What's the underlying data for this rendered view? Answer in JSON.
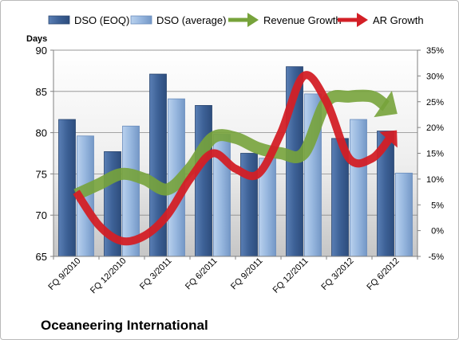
{
  "chart_data": {
    "type": "bar",
    "title": "",
    "company": "Oceaneering International",
    "y_left_label": "Days",
    "y_left_range": [
      65,
      90
    ],
    "y_left_ticks": [
      "65",
      "70",
      "75",
      "80",
      "85",
      "90"
    ],
    "y_right_range": [
      -5,
      35
    ],
    "y_right_ticks": [
      "-5%",
      "0%",
      "5%",
      "10%",
      "15%",
      "20%",
      "25%",
      "30%",
      "35%"
    ],
    "legend_position": "top",
    "grid": true,
    "x_tick_labels": [
      "FQ 9/2010",
      "FQ 12/2010",
      "FQ 3/2011",
      "FQ 6/2011",
      "FQ 9/2011",
      "FQ 12/2011",
      "FQ 3/2012",
      "FQ 6/2012"
    ],
    "bar_series": [
      {
        "name": "DSO (EOQ)",
        "color": "#4a6fa5",
        "values": [
          81.6,
          77.7,
          87.1,
          83.3,
          77.5,
          88.0,
          79.3,
          80.2
        ]
      },
      {
        "name": "DSO (average)",
        "color": "#9dbbe0",
        "values": [
          79.6,
          80.8,
          84.1,
          79.8,
          76.9,
          84.7,
          81.6,
          75.1
        ]
      }
    ],
    "arrow_series": [
      {
        "name": "Revenue Growth",
        "color": "#77a33b",
        "x": [
          0,
          0.5,
          1,
          1.5,
          2,
          2.5,
          3,
          3.5,
          4,
          4.5,
          5,
          5.5,
          6,
          6.5,
          7
        ],
        "values": [
          7,
          9,
          11,
          10,
          8,
          12,
          18,
          18,
          16,
          15,
          15,
          25,
          26,
          26,
          23
        ]
      },
      {
        "name": "AR Growth",
        "color": "#d31f26",
        "x": [
          0,
          0.5,
          1,
          1.5,
          2,
          2.5,
          3,
          3.5,
          4,
          4.5,
          5,
          5.5,
          6,
          6.5,
          7
        ],
        "values": [
          7.5,
          1,
          -2,
          -1,
          3,
          10,
          15,
          12,
          11,
          19,
          30,
          25,
          14,
          14,
          19
        ]
      }
    ]
  }
}
